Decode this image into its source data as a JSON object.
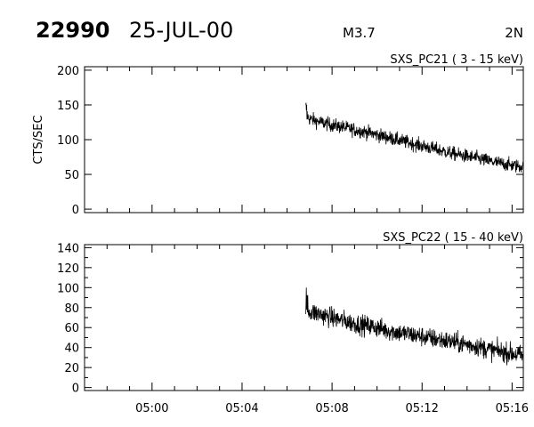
{
  "header": {
    "event_id": "22990",
    "date": "25-JUL-00",
    "flare_class": "M3.7",
    "label_right": "2N"
  },
  "chart_data": [
    {
      "type": "line",
      "title": "SXS_PC21  (  3 - 15 keV)",
      "ylabel": "CTS/SEC",
      "xlabel": "",
      "xlim": [
        "04:57:00",
        "05:16:30"
      ],
      "ylim": [
        -5,
        205
      ],
      "yticks": [
        0,
        50,
        100,
        150,
        200
      ],
      "ytick_labels": [
        "0",
        "50",
        "100",
        "150",
        "200"
      ],
      "xticks": [
        "05:00",
        "05:04",
        "05:08",
        "05:12",
        "05:16"
      ],
      "show_x_tick_labels": false,
      "grid": false,
      "series": [
        {
          "x": [
            "05:06:50",
            "05:07:00",
            "05:07:30",
            "05:08:00",
            "05:08:30",
            "05:09:00",
            "05:09:30",
            "05:10:00",
            "05:10:30",
            "05:11:00",
            "05:11:30",
            "05:12:00",
            "05:12:30",
            "05:13:00",
            "05:13:30",
            "05:14:00",
            "05:14:30",
            "05:15:00",
            "05:15:30",
            "05:16:00",
            "05:16:30"
          ],
          "values": [
            135,
            130,
            125,
            121,
            118,
            114,
            111,
            107,
            103,
            99,
            95,
            91,
            87,
            83,
            79,
            76,
            73,
            69,
            66,
            63,
            61
          ]
        }
      ]
    },
    {
      "type": "line",
      "title": "SXS_PC22  ( 15 - 40 keV)",
      "ylabel": "",
      "xlabel": "",
      "xlim": [
        "04:57:00",
        "05:16:30"
      ],
      "ylim": [
        -3,
        143
      ],
      "yticks": [
        0,
        10,
        20,
        30,
        40,
        50,
        60,
        70,
        80,
        90,
        100,
        110,
        120,
        130,
        140
      ],
      "ytick_labels": [
        "0",
        "",
        "20",
        "",
        "40",
        "",
        "60",
        "",
        "80",
        "",
        "100",
        "",
        "120",
        "",
        "140"
      ],
      "xticks": [
        "05:00",
        "05:04",
        "05:08",
        "05:12",
        "05:16"
      ],
      "show_x_tick_labels": true,
      "grid": false,
      "series": [
        {
          "x": [
            "05:06:50",
            "05:07:00",
            "05:07:30",
            "05:08:00",
            "05:08:30",
            "05:09:00",
            "05:09:30",
            "05:10:00",
            "05:10:30",
            "05:11:00",
            "05:11:30",
            "05:12:00",
            "05:12:30",
            "05:13:00",
            "05:13:30",
            "05:14:00",
            "05:14:30",
            "05:15:00",
            "05:15:30",
            "05:16:00",
            "05:16:30"
          ],
          "values": [
            78,
            76,
            73,
            70,
            67,
            64,
            62,
            60,
            57,
            55,
            53,
            51,
            49,
            47,
            45,
            43,
            41,
            38,
            36,
            34,
            32
          ]
        }
      ]
    }
  ]
}
